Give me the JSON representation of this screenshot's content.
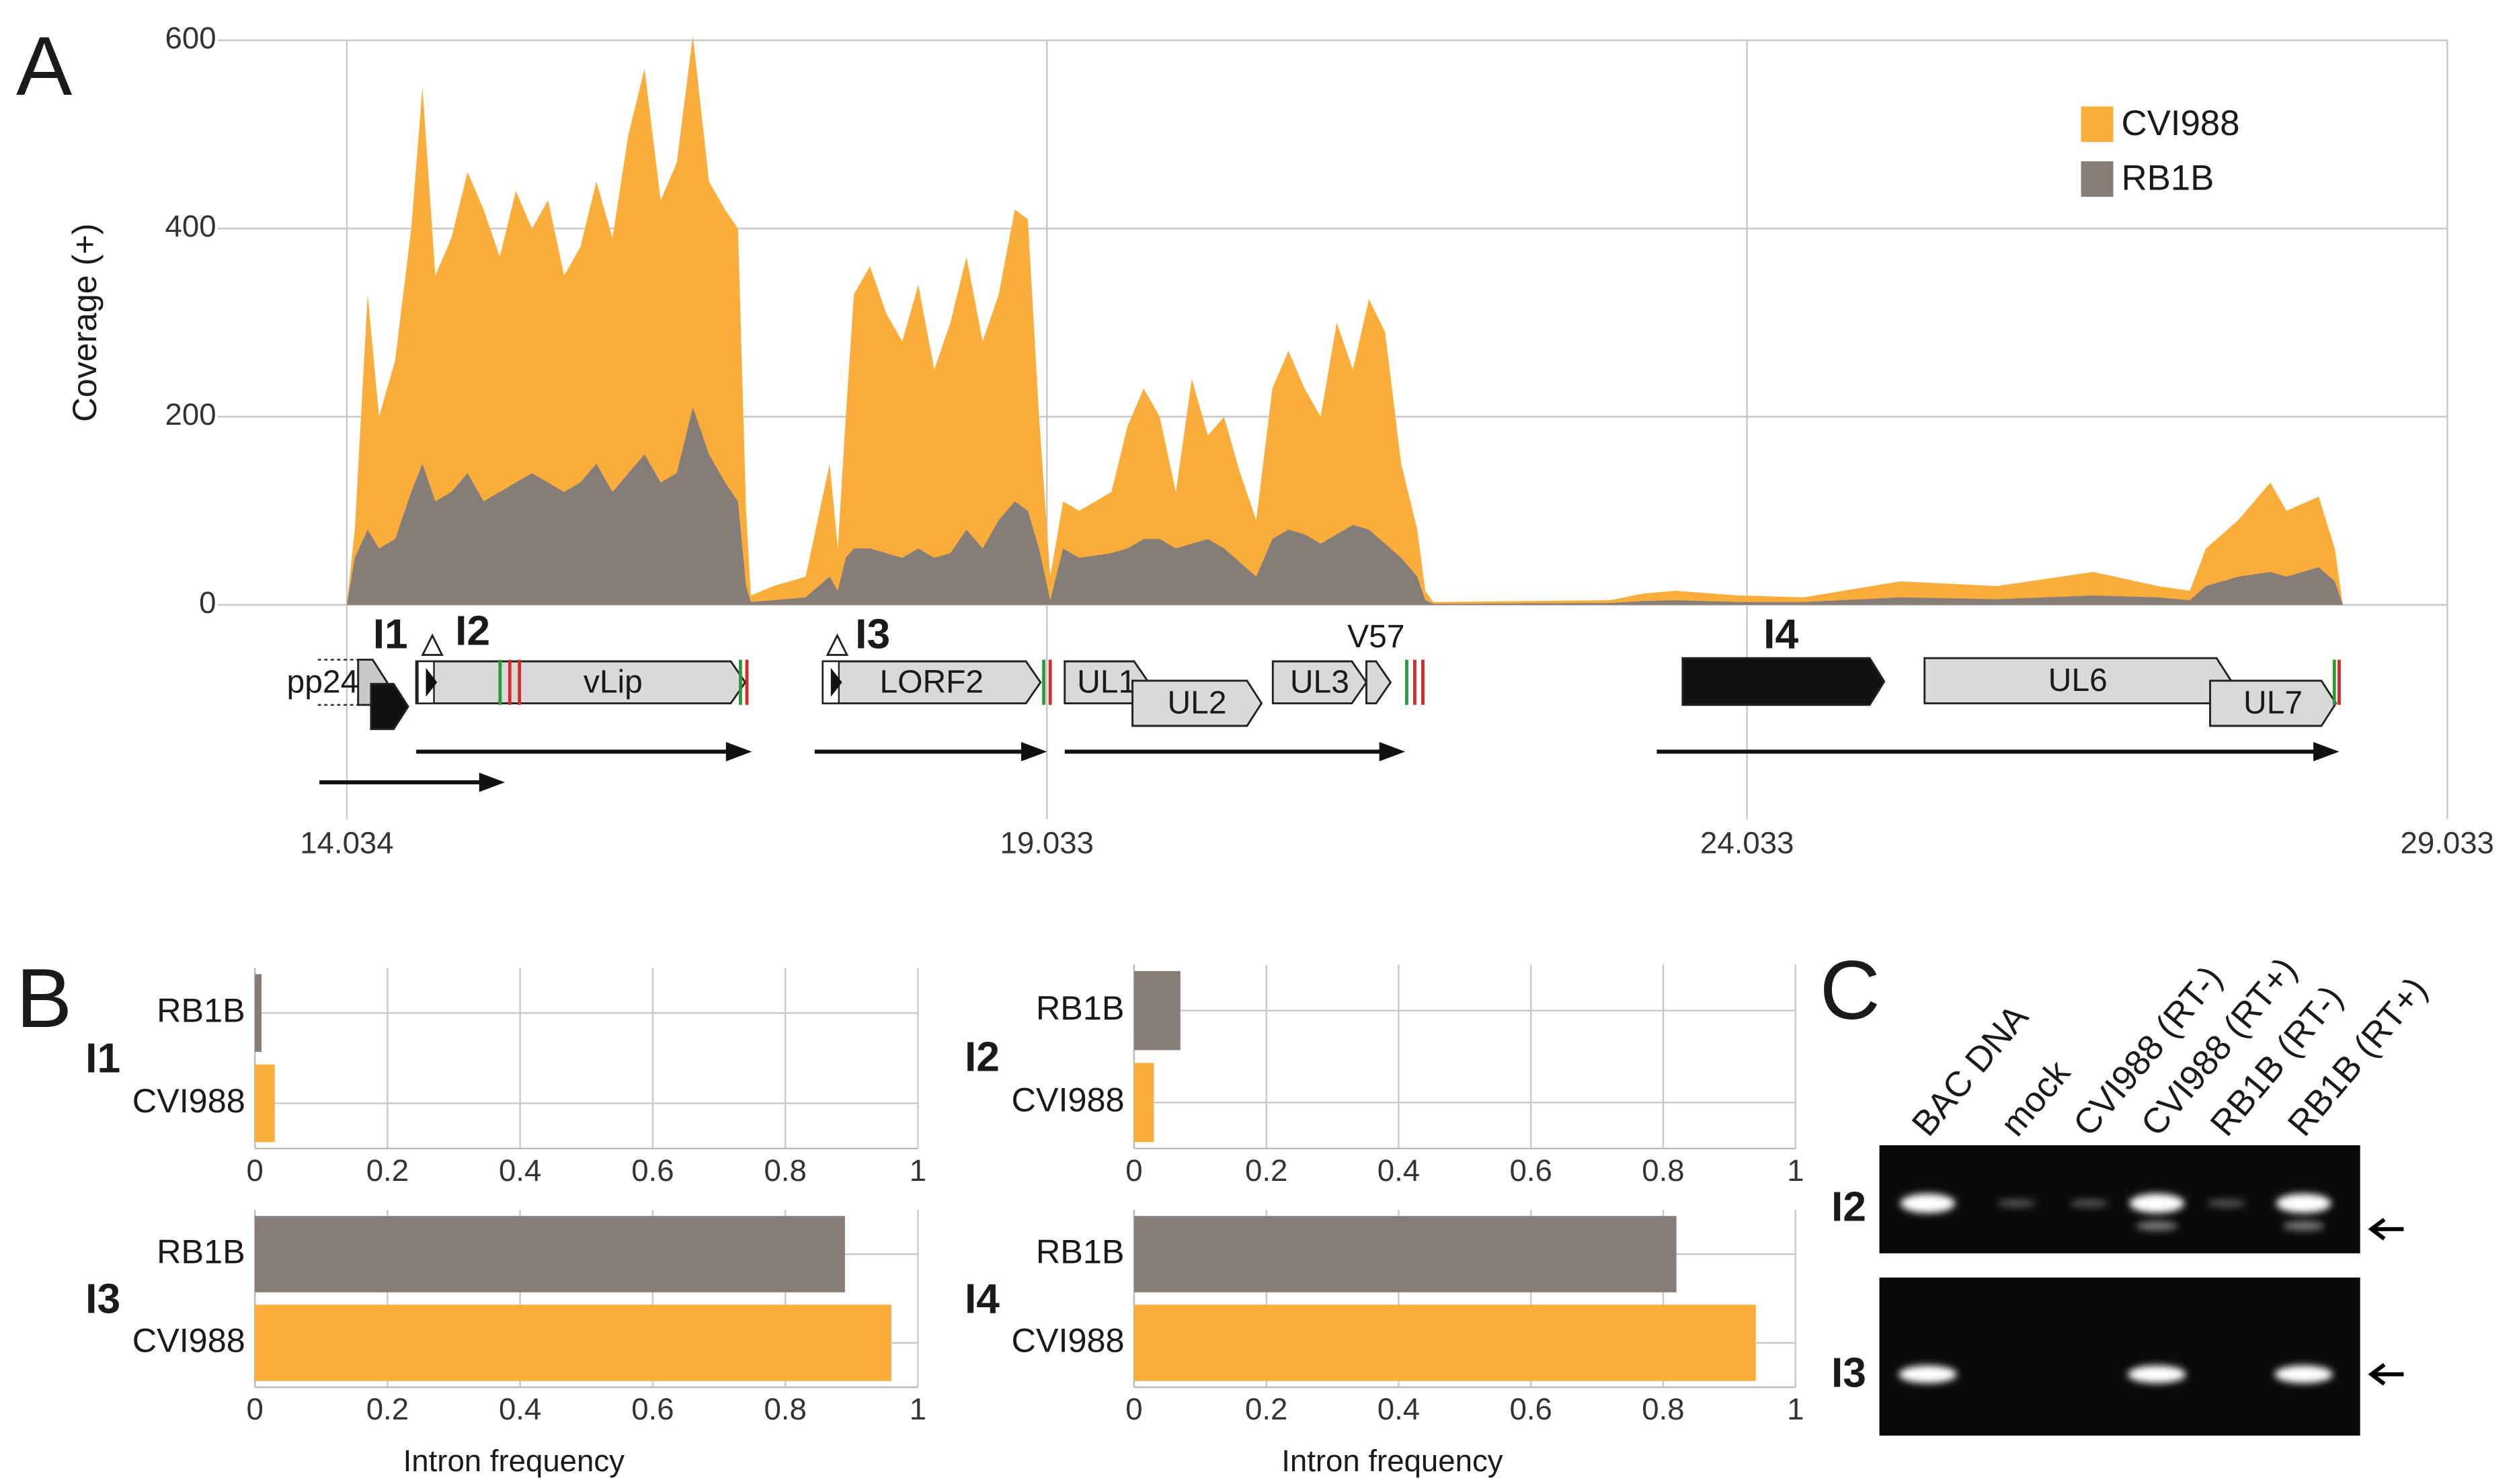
{
  "panels": [
    "A",
    "B",
    "C"
  ],
  "chart_data": [
    {
      "type": "area",
      "ylabel": "Coverage (+)",
      "x": [
        14.034,
        14.091,
        14.183,
        14.264,
        14.379,
        14.494,
        14.574,
        14.666,
        14.781,
        14.896,
        15.011,
        15.126,
        15.241,
        15.356,
        15.471,
        15.586,
        15.701,
        15.816,
        15.931,
        16.045,
        16.16,
        16.275,
        16.39,
        16.505,
        16.62,
        16.735,
        16.827,
        16.885,
        16.919,
        17.08,
        17.31,
        17.482,
        17.54,
        17.597,
        17.655,
        17.77,
        17.885,
        18.0,
        18.115,
        18.229,
        18.344,
        18.459,
        18.574,
        18.689,
        18.804,
        18.897,
        18.977,
        19.057,
        19.149,
        19.264,
        19.494,
        19.609,
        19.724,
        19.839,
        19.954,
        20.068,
        20.183,
        20.298,
        20.413,
        20.528,
        20.643,
        20.758,
        20.873,
        20.988,
        21.103,
        21.218,
        21.333,
        21.448,
        21.563,
        21.678,
        21.735,
        21.793,
        23.057,
        23.287,
        23.517,
        23.977,
        24.436,
        25.126,
        25.816,
        26.506,
        26.965,
        27.195,
        27.31,
        27.54,
        27.77,
        27.885,
        28.115,
        28.23,
        28.287,
        29.033
      ],
      "series": [
        {
          "name": "CVI988",
          "color": "#fbad3c",
          "values": [
            0,
            80,
            330,
            200,
            260,
            400,
            550,
            350,
            390,
            460,
            420,
            370,
            440,
            400,
            430,
            350,
            380,
            450,
            390,
            500,
            570,
            430,
            470,
            605,
            450,
            420,
            400,
            100,
            10,
            20,
            30,
            150,
            60,
            200,
            330,
            360,
            310,
            280,
            340,
            250,
            300,
            370,
            280,
            330,
            420,
            410,
            200,
            30,
            110,
            100,
            120,
            190,
            230,
            200,
            120,
            240,
            180,
            200,
            140,
            90,
            230,
            270,
            230,
            200,
            300,
            250,
            325,
            290,
            150,
            80,
            15,
            3,
            5,
            12,
            15,
            10,
            8,
            25,
            20,
            35,
            20,
            15,
            60,
            90,
            130,
            100,
            115,
            60,
            0,
            0
          ]
        },
        {
          "name": "RB1B",
          "color": "#857d78",
          "values": [
            0,
            50,
            80,
            60,
            70,
            120,
            150,
            110,
            120,
            140,
            110,
            120,
            130,
            140,
            130,
            120,
            130,
            150,
            120,
            140,
            160,
            130,
            140,
            210,
            160,
            130,
            110,
            20,
            3,
            5,
            8,
            30,
            15,
            50,
            60,
            60,
            55,
            50,
            60,
            50,
            55,
            80,
            60,
            90,
            110,
            100,
            60,
            5,
            60,
            50,
            55,
            60,
            70,
            70,
            60,
            65,
            70,
            60,
            45,
            30,
            70,
            80,
            75,
            65,
            75,
            85,
            80,
            65,
            50,
            30,
            5,
            1,
            2,
            4,
            5,
            3,
            3,
            8,
            6,
            10,
            8,
            5,
            20,
            30,
            35,
            30,
            40,
            25,
            0,
            0
          ]
        }
      ],
      "xlim": [
        13.17,
        29.033
      ],
      "xticks": [
        14.034,
        19.033,
        24.033,
        29.033
      ],
      "ylim": [
        0,
        600
      ],
      "yticks": [
        0,
        200,
        400,
        600
      ],
      "grid": true,
      "legend": "upper right"
    },
    {
      "type": "barh",
      "title": "I1",
      "categories": [
        "RB1B",
        "CVI988"
      ],
      "values": [
        0.01,
        0.03
      ],
      "colors": [
        "#857d78",
        "#fbad3c"
      ],
      "xlim": [
        0,
        1
      ],
      "xticks": [
        0,
        0.2,
        0.4,
        0.6,
        0.8,
        1
      ]
    },
    {
      "type": "barh",
      "title": "I2",
      "categories": [
        "RB1B",
        "CVI988"
      ],
      "values": [
        0.07,
        0.03
      ],
      "colors": [
        "#857d78",
        "#fbad3c"
      ],
      "xlim": [
        0,
        1
      ],
      "xticks": [
        0,
        0.2,
        0.4,
        0.6,
        0.8,
        1
      ]
    },
    {
      "type": "barh",
      "title": "I3",
      "categories": [
        "RB1B",
        "CVI988"
      ],
      "values": [
        0.89,
        0.96
      ],
      "colors": [
        "#857d78",
        "#fbad3c"
      ],
      "xlim": [
        0,
        1
      ],
      "xticks": [
        0,
        0.2,
        0.4,
        0.6,
        0.8,
        1
      ],
      "xlabel": "Intron frequency"
    },
    {
      "type": "barh",
      "title": "I4",
      "categories": [
        "RB1B",
        "CVI988"
      ],
      "values": [
        0.82,
        0.94
      ],
      "colors": [
        "#857d78",
        "#fbad3c"
      ],
      "xlim": [
        0,
        1
      ],
      "xticks": [
        0,
        0.2,
        0.4,
        0.6,
        0.8,
        1
      ],
      "xlabel": "Intron frequency"
    }
  ],
  "genes": {
    "labels": [
      "pp24",
      "vLip",
      "LORF2",
      "UL1",
      "UL2",
      "UL3",
      "V57",
      "UL6",
      "UL7"
    ],
    "introns": [
      "I1",
      "I2",
      "I3",
      "I4"
    ]
  },
  "gel": {
    "lanes": [
      "BAC DNA",
      "mock",
      "CVI988 (RT-)",
      "CVI988 (RT+)",
      "RB1B (RT-)",
      "RB1B (RT+)"
    ],
    "rows": [
      "I2",
      "I3"
    ]
  }
}
